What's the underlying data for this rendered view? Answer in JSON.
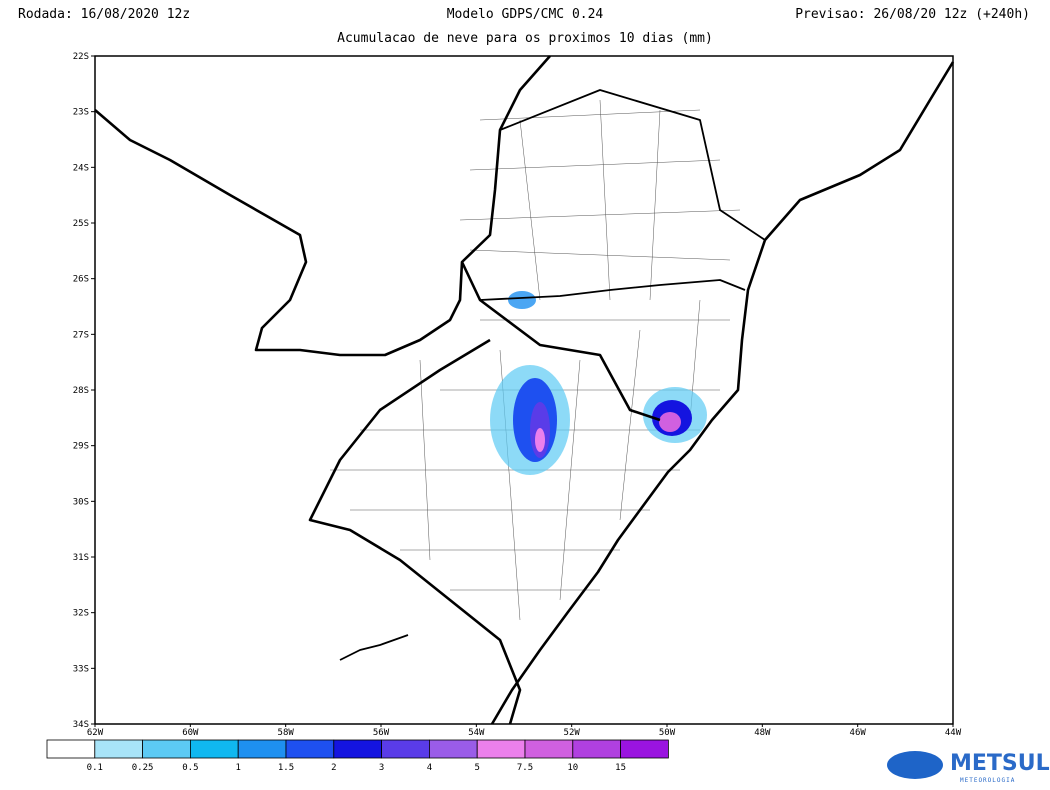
{
  "header": {
    "left": "Rodada: 16/08/2020 12z",
    "center": "Modelo GDPS/CMC 0.24",
    "right": "Previsao: 26/08/20 12z (+240h)",
    "subtitle": "Acumulacao de neve para os proximos 10 dias (mm)"
  },
  "map": {
    "lat_labels": [
      "22S",
      "23S",
      "24S",
      "25S",
      "26S",
      "27S",
      "28S",
      "29S",
      "30S",
      "31S",
      "32S",
      "33S",
      "34S"
    ],
    "lon_labels": [
      "62W",
      "60W",
      "58W",
      "56W",
      "54W",
      "52W",
      "50W",
      "48W",
      "46W",
      "44W"
    ]
  },
  "colorbar": {
    "labels": [
      "0.1",
      "0.25",
      "0.5",
      "1",
      "1.5",
      "2",
      "3",
      "4",
      "5",
      "7.5",
      "10",
      "15"
    ],
    "colors": [
      "#ffffff",
      "#a8e4f8",
      "#5ccaf4",
      "#10b8f0",
      "#1e90f0",
      "#1e50f0",
      "#1414e0",
      "#5a3ce8",
      "#9a5ce8",
      "#ec80ec",
      "#d060e0",
      "#b040e0",
      "#9a14e0"
    ]
  },
  "logo": {
    "name": "METSUL",
    "tagline": "METEOROLOGIA"
  }
}
